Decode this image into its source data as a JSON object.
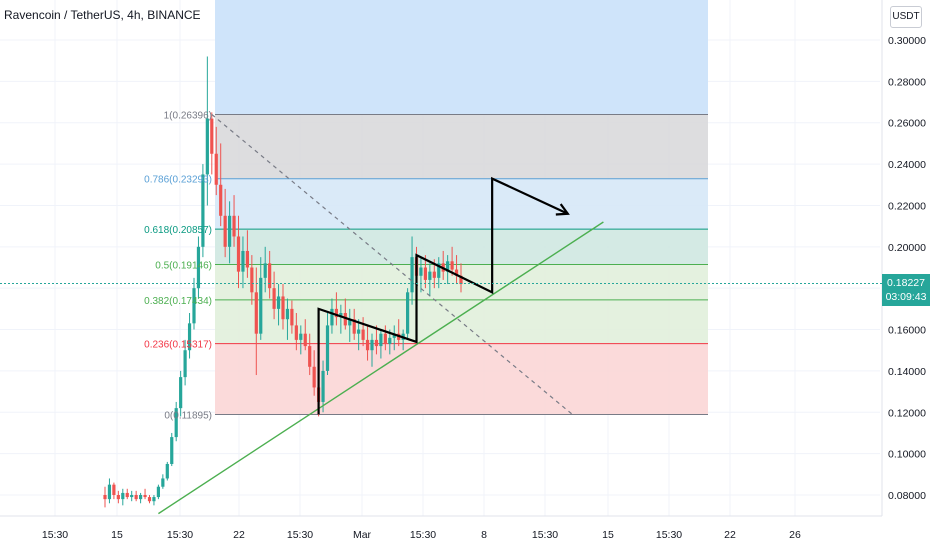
{
  "header": {
    "title": "Ravencoin / TetherUS, 4h, BINANCE",
    "currency_button": "USDT"
  },
  "last_price": {
    "value": "0.18227",
    "countdown": "03:09:43",
    "color": "#26a69a"
  },
  "colors": {
    "up": "#26a69a",
    "down": "#ef5350",
    "trendline": "#4caf50",
    "projection": "#000000",
    "fib_zone_top": "#d9d9dc",
    "fib_zone_786": "#d6e8f7",
    "fib_zone_618": "#cfe8e1",
    "fib_zone_382": "#e1f0db",
    "fib_zone_236": "#fbd6d6",
    "blue_rect": "#cfe4fa"
  },
  "chart_data": {
    "type": "candlestick",
    "symbol": "Ravencoin / TetherUS",
    "interval": "4h",
    "exchange": "BINANCE",
    "x_ticks": [
      "15:30",
      "15",
      "15:30",
      "22",
      "15:30",
      "Mar",
      "15:30",
      "8",
      "15:30",
      "15",
      "15:30",
      "22",
      "26"
    ],
    "y_ticks": [
      "0.30000",
      "0.28000",
      "0.26000",
      "0.24000",
      "0.22000",
      "0.20000",
      "0.18000",
      "0.16000",
      "0.14000",
      "0.12000",
      "0.10000",
      "0.08000"
    ],
    "y_values": [
      0.3,
      0.28,
      0.26,
      0.24,
      0.22,
      0.2,
      0.18,
      0.16,
      0.14,
      0.12,
      0.1,
      0.08
    ],
    "ylim": [
      0.068,
      0.31
    ],
    "fib_levels": [
      {
        "label": "1(0.26396)",
        "ratio": 1,
        "price": 0.26396,
        "color": "#787b86"
      },
      {
        "label": "0.786(0.23293)",
        "ratio": 0.786,
        "price": 0.23293,
        "color": "#5aa0d6"
      },
      {
        "label": "0.618(0.20857)",
        "ratio": 0.618,
        "price": 0.20857,
        "color": "#089981"
      },
      {
        "label": "0.5(0.19146)",
        "ratio": 0.5,
        "price": 0.19146,
        "color": "#4caf50"
      },
      {
        "label": "0.382(0.17434)",
        "ratio": 0.382,
        "price": 0.17434,
        "color": "#4caf50"
      },
      {
        "label": "0.236(0.15317)",
        "ratio": 0.236,
        "price": 0.15317,
        "color": "#f23645"
      },
      {
        "label": "0(0.11895)",
        "ratio": 0,
        "price": 0.11895,
        "color": "#787b86"
      }
    ],
    "candles_ohlc": [
      [
        0.08,
        0.084,
        0.074,
        0.078
      ],
      [
        0.078,
        0.088,
        0.076,
        0.085
      ],
      [
        0.085,
        0.086,
        0.078,
        0.08
      ],
      [
        0.08,
        0.082,
        0.076,
        0.078
      ],
      [
        0.078,
        0.083,
        0.075,
        0.081
      ],
      [
        0.081,
        0.083,
        0.078,
        0.079
      ],
      [
        0.079,
        0.082,
        0.077,
        0.08
      ],
      [
        0.08,
        0.082,
        0.077,
        0.078
      ],
      [
        0.078,
        0.081,
        0.076,
        0.08
      ],
      [
        0.08,
        0.083,
        0.078,
        0.079
      ],
      [
        0.079,
        0.08,
        0.076,
        0.077
      ],
      [
        0.077,
        0.08,
        0.075,
        0.079
      ],
      [
        0.079,
        0.085,
        0.078,
        0.084
      ],
      [
        0.084,
        0.09,
        0.083,
        0.088
      ],
      [
        0.088,
        0.096,
        0.087,
        0.095
      ],
      [
        0.095,
        0.11,
        0.094,
        0.108
      ],
      [
        0.108,
        0.125,
        0.106,
        0.122
      ],
      [
        0.122,
        0.14,
        0.118,
        0.137
      ],
      [
        0.137,
        0.155,
        0.133,
        0.15
      ],
      [
        0.15,
        0.168,
        0.146,
        0.163
      ],
      [
        0.163,
        0.185,
        0.16,
        0.18
      ],
      [
        0.18,
        0.205,
        0.175,
        0.2
      ],
      [
        0.2,
        0.24,
        0.195,
        0.235
      ],
      [
        0.235,
        0.292,
        0.22,
        0.262
      ],
      [
        0.262,
        0.265,
        0.235,
        0.245
      ],
      [
        0.245,
        0.258,
        0.225,
        0.23
      ],
      [
        0.23,
        0.25,
        0.21,
        0.215
      ],
      [
        0.215,
        0.228,
        0.195,
        0.2
      ],
      [
        0.2,
        0.222,
        0.192,
        0.215
      ],
      [
        0.215,
        0.225,
        0.2,
        0.205
      ],
      [
        0.205,
        0.215,
        0.18,
        0.188
      ],
      [
        0.188,
        0.205,
        0.18,
        0.198
      ],
      [
        0.198,
        0.208,
        0.185,
        0.19
      ],
      [
        0.19,
        0.196,
        0.172,
        0.178
      ],
      [
        0.178,
        0.19,
        0.138,
        0.158
      ],
      [
        0.158,
        0.195,
        0.155,
        0.185
      ],
      [
        0.185,
        0.2,
        0.178,
        0.192
      ],
      [
        0.192,
        0.198,
        0.175,
        0.18
      ],
      [
        0.18,
        0.188,
        0.165,
        0.17
      ],
      [
        0.17,
        0.182,
        0.162,
        0.176
      ],
      [
        0.176,
        0.182,
        0.16,
        0.165
      ],
      [
        0.165,
        0.175,
        0.155,
        0.17
      ],
      [
        0.17,
        0.174,
        0.158,
        0.162
      ],
      [
        0.162,
        0.168,
        0.15,
        0.155
      ],
      [
        0.155,
        0.162,
        0.148,
        0.158
      ],
      [
        0.158,
        0.165,
        0.15,
        0.152
      ],
      [
        0.152,
        0.158,
        0.138,
        0.142
      ],
      [
        0.142,
        0.15,
        0.128,
        0.132
      ],
      [
        0.132,
        0.14,
        0.118,
        0.125
      ],
      [
        0.125,
        0.145,
        0.12,
        0.14
      ],
      [
        0.14,
        0.168,
        0.138,
        0.162
      ],
      [
        0.162,
        0.175,
        0.158,
        0.17
      ],
      [
        0.17,
        0.178,
        0.162,
        0.166
      ],
      [
        0.166,
        0.172,
        0.158,
        0.168
      ],
      [
        0.168,
        0.175,
        0.16,
        0.162
      ],
      [
        0.162,
        0.17,
        0.154,
        0.165
      ],
      [
        0.165,
        0.17,
        0.155,
        0.158
      ],
      [
        0.158,
        0.165,
        0.15,
        0.16
      ],
      [
        0.16,
        0.166,
        0.152,
        0.155
      ],
      [
        0.155,
        0.162,
        0.145,
        0.15
      ],
      [
        0.15,
        0.158,
        0.142,
        0.155
      ],
      [
        0.155,
        0.162,
        0.148,
        0.152
      ],
      [
        0.152,
        0.16,
        0.146,
        0.158
      ],
      [
        0.158,
        0.162,
        0.15,
        0.153
      ],
      [
        0.153,
        0.16,
        0.148,
        0.156
      ],
      [
        0.156,
        0.162,
        0.15,
        0.158
      ],
      [
        0.158,
        0.165,
        0.152,
        0.155
      ],
      [
        0.155,
        0.16,
        0.15,
        0.158
      ],
      [
        0.158,
        0.18,
        0.155,
        0.178
      ],
      [
        0.178,
        0.205,
        0.172,
        0.195
      ],
      [
        0.195,
        0.2,
        0.182,
        0.186
      ],
      [
        0.186,
        0.195,
        0.178,
        0.19
      ],
      [
        0.19,
        0.196,
        0.18,
        0.184
      ],
      [
        0.184,
        0.192,
        0.176,
        0.188
      ],
      [
        0.188,
        0.194,
        0.18,
        0.185
      ],
      [
        0.185,
        0.195,
        0.18,
        0.192
      ],
      [
        0.192,
        0.198,
        0.184,
        0.188
      ],
      [
        0.188,
        0.196,
        0.182,
        0.193
      ],
      [
        0.193,
        0.2,
        0.186,
        0.189
      ],
      [
        0.189,
        0.196,
        0.182,
        0.186
      ],
      [
        0.186,
        0.192,
        0.178,
        0.182
      ]
    ],
    "annotations": {
      "rising_trendline": {
        "from": {
          "candle": 12,
          "price": 0.071
        },
        "to": {
          "candle": 112,
          "price": 0.212
        }
      },
      "dashed_diagonal": {
        "from": {
          "candle": 24,
          "price": 0.264
        },
        "to": {
          "candle": 105,
          "price": 0.119
        }
      },
      "projection_path": [
        {
          "candle": 48,
          "price": 0.119
        },
        {
          "candle": 48,
          "price": 0.17
        },
        {
          "candle": 70,
          "price": 0.154
        },
        {
          "candle": 70,
          "price": 0.196
        },
        {
          "candle": 87,
          "price": 0.178
        },
        {
          "candle": 87,
          "price": 0.233
        },
        {
          "candle": 104,
          "price": 0.216
        }
      ]
    },
    "grid": true,
    "legend": "none"
  }
}
